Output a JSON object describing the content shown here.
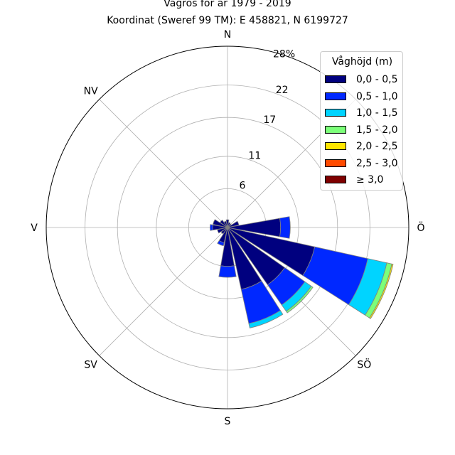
{
  "chart_data": {
    "type": "wind-rose (polar stacked bar)",
    "title_line1": "Vågros för år 1979 - 2019",
    "title_line2": "Koordinat (Sweref 99 TM): E 458821, N 6199727",
    "directions": [
      "N",
      "NV",
      "V",
      "SV",
      "S",
      "SÖ",
      "Ö"
    ],
    "max_label": "28%",
    "ring_labels": [
      "6",
      "11",
      "17",
      "22"
    ],
    "r_ticks": [
      6,
      11,
      17,
      22,
      28
    ],
    "r_max": 28,
    "legend": {
      "title": "Våghöjd (m)",
      "bins": [
        {
          "label": "0,0 - 0,5",
          "color": "#00007f"
        },
        {
          "label": "0,5 - 1,0",
          "color": "#0028ff"
        },
        {
          "label": "1,0 - 1,5",
          "color": "#00d4ff"
        },
        {
          "label": "1,5 - 2,0",
          "color": "#7cff79"
        },
        {
          "label": "2,0 - 2,5",
          "color": "#ffe500"
        },
        {
          "label": "2,5 - 3,0",
          "color": "#ff4a00"
        },
        {
          "label": "≥ 3,0",
          "color": "#7f0000"
        }
      ]
    },
    "sectors": [
      {
        "direction_deg": 0,
        "values": [
          1.2,
          0.0,
          0.0,
          0.0,
          0.0,
          0.0,
          0.0
        ]
      },
      {
        "direction_deg": 22.5,
        "values": [
          0.8,
          0.0,
          0.0,
          0.0,
          0.0,
          0.0,
          0.0
        ]
      },
      {
        "direction_deg": 45,
        "values": [
          0.7,
          0.0,
          0.0,
          0.0,
          0.0,
          0.0,
          0.0
        ]
      },
      {
        "direction_deg": 67.5,
        "values": [
          1.8,
          0.0,
          0.0,
          0.0,
          0.0,
          0.0,
          0.0
        ]
      },
      {
        "direction_deg": 90,
        "values": [
          8.2,
          1.5,
          0.0,
          0.0,
          0.0,
          0.0,
          0.0
        ]
      },
      {
        "direction_deg": 112.5,
        "values": [
          13.8,
          8.4,
          3.0,
          0.8,
          0.2,
          0.0,
          0.0
        ]
      },
      {
        "direction_deg": 135,
        "values": [
          10.8,
          3.8,
          1.2,
          0.3,
          0.0,
          0.0,
          0.0
        ]
      },
      {
        "direction_deg": 157.5,
        "values": [
          9.8,
          5.4,
          0.7,
          0.0,
          0.0,
          0.0,
          0.0
        ]
      },
      {
        "direction_deg": 180,
        "values": [
          6.0,
          1.7,
          0.0,
          0.0,
          0.0,
          0.0,
          0.0
        ]
      },
      {
        "direction_deg": 202.5,
        "values": [
          2.4,
          0.5,
          0.0,
          0.0,
          0.0,
          0.0,
          0.0
        ]
      },
      {
        "direction_deg": 225,
        "values": [
          1.2,
          0.0,
          0.0,
          0.0,
          0.0,
          0.0,
          0.0
        ]
      },
      {
        "direction_deg": 247.5,
        "values": [
          1.6,
          0.0,
          0.0,
          0.0,
          0.0,
          0.0,
          0.0
        ]
      },
      {
        "direction_deg": 270,
        "values": [
          2.3,
          0.4,
          0.0,
          0.0,
          0.0,
          0.0,
          0.0
        ]
      },
      {
        "direction_deg": 292.5,
        "values": [
          2.3,
          0.0,
          0.0,
          0.0,
          0.0,
          0.0,
          0.0
        ]
      },
      {
        "direction_deg": 315,
        "values": [
          1.4,
          0.0,
          0.0,
          0.0,
          0.0,
          0.0,
          0.0
        ]
      },
      {
        "direction_deg": 337.5,
        "values": [
          1.0,
          0.0,
          0.0,
          0.0,
          0.0,
          0.0,
          0.0
        ]
      }
    ]
  }
}
